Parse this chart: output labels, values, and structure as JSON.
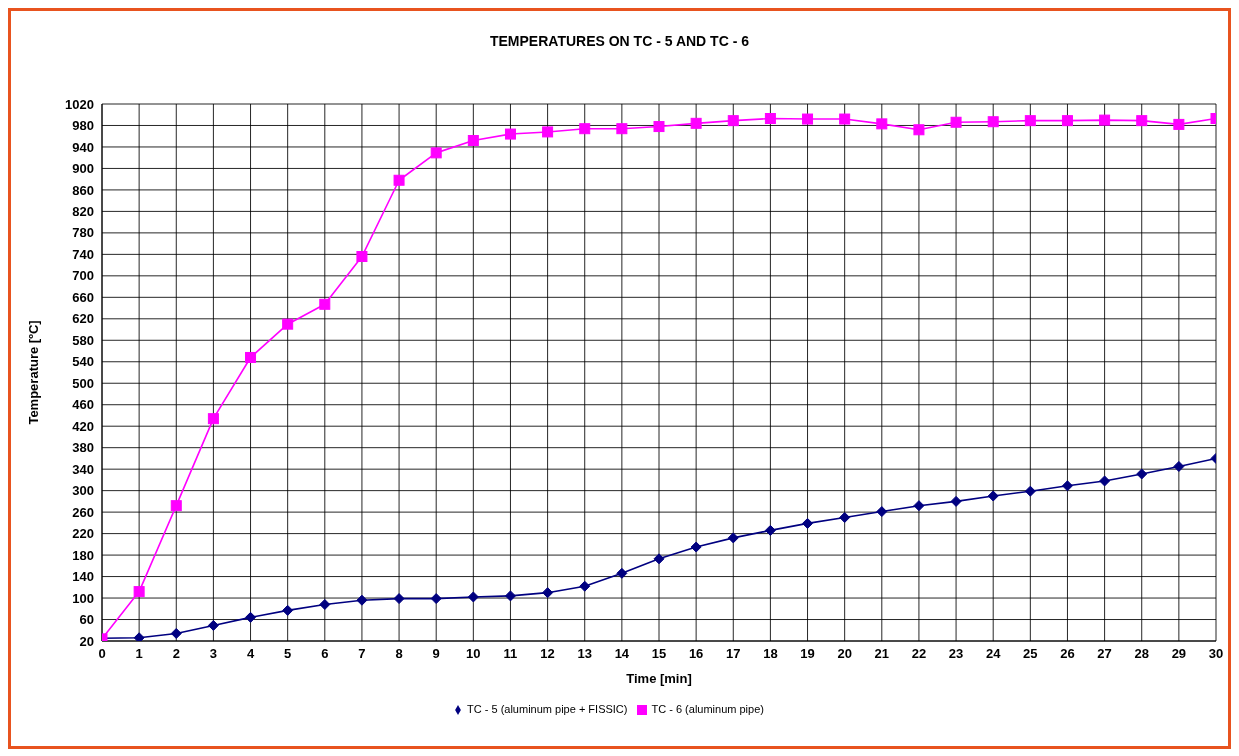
{
  "chart_data": {
    "type": "line",
    "title": "TEMPERATURES ON TC - 5 AND TC - 6",
    "xlabel": "Time [min]",
    "ylabel": "Temperature [ºC]",
    "x": [
      0,
      1,
      2,
      3,
      4,
      5,
      6,
      7,
      8,
      9,
      10,
      11,
      12,
      13,
      14,
      15,
      16,
      17,
      18,
      19,
      20,
      21,
      22,
      23,
      24,
      25,
      26,
      27,
      28,
      29,
      30
    ],
    "series": [
      {
        "name": "TC - 5 (aluminum pipe + FISSIC)",
        "color": "#000080",
        "marker": "diamond",
        "values": [
          25,
          26,
          34,
          49,
          64,
          77,
          88,
          96,
          99,
          99,
          102,
          104,
          110,
          122,
          146,
          173,
          195,
          212,
          226,
          239,
          250,
          261,
          272,
          280,
          290,
          299,
          309,
          318,
          331,
          345,
          360
        ]
      },
      {
        "name": "TC - 6 (aluminum pipe)",
        "color": "#ff00ff",
        "marker": "square",
        "values": [
          24,
          112,
          272,
          434,
          548,
          610,
          647,
          736,
          878,
          929,
          952,
          964,
          968,
          974,
          974,
          978,
          984,
          989,
          993,
          992,
          992,
          983,
          972,
          986,
          987,
          989,
          989,
          990,
          989,
          982,
          993
        ]
      }
    ],
    "xlim": [
      0,
      30
    ],
    "xticks": [
      0,
      1,
      2,
      3,
      4,
      5,
      6,
      7,
      8,
      9,
      10,
      11,
      12,
      13,
      14,
      15,
      16,
      17,
      18,
      19,
      20,
      21,
      22,
      23,
      24,
      25,
      26,
      27,
      28,
      29,
      30
    ],
    "ylim": [
      20,
      1020
    ],
    "yticks": [
      20,
      60,
      100,
      140,
      180,
      220,
      260,
      300,
      340,
      380,
      420,
      460,
      500,
      540,
      580,
      620,
      660,
      700,
      740,
      780,
      820,
      860,
      900,
      940,
      980,
      1020
    ],
    "grid": true,
    "legend": "bottom",
    "line_style": "solid"
  }
}
